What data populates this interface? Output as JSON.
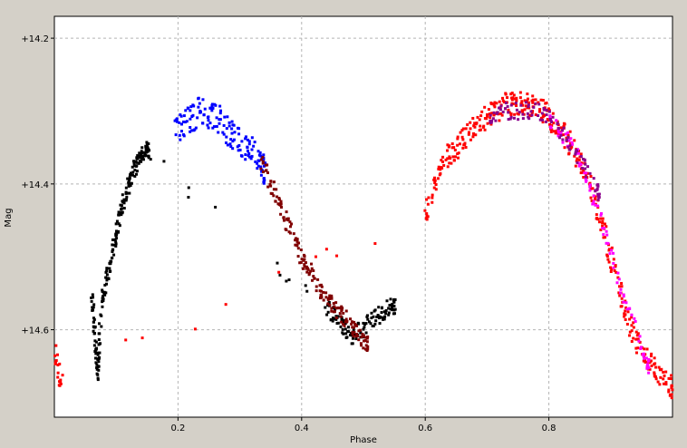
{
  "chart_data": {
    "type": "scatter",
    "xlabel": "Phase",
    "ylabel": "Mag",
    "xlim": [
      0.0,
      1.0
    ],
    "ylim": [
      14.17,
      14.72
    ],
    "y_inverted": true,
    "grid": true,
    "x_ticks": [
      {
        "value": 0.2,
        "label": "0.2"
      },
      {
        "value": 0.4,
        "label": "0.4"
      },
      {
        "value": 0.6,
        "label": "0.6"
      },
      {
        "value": 0.8,
        "label": "0.8"
      }
    ],
    "y_ticks": [
      {
        "value": 14.2,
        "label": "+14.2"
      },
      {
        "value": 14.4,
        "label": "+14.4"
      },
      {
        "value": 14.6,
        "label": "+14.6"
      }
    ],
    "colors": {
      "plot_background": "#ffffff",
      "window_background": "#d4d0c8",
      "grid": "#b4b4b4"
    },
    "series": [
      {
        "color": "#000000",
        "x": [
          0.06,
          0.063,
          0.066,
          0.068,
          0.07,
          0.073,
          0.076,
          0.08,
          0.085,
          0.09,
          0.095,
          0.1,
          0.105,
          0.11,
          0.115,
          0.12,
          0.125,
          0.13,
          0.135,
          0.14,
          0.145,
          0.15,
          0.155,
          0.44,
          0.45,
          0.46,
          0.47,
          0.48,
          0.49,
          0.5,
          0.51,
          0.52,
          0.53,
          0.54,
          0.55
        ],
        "y": [
          14.54,
          14.58,
          14.61,
          14.64,
          14.66,
          14.62,
          14.57,
          14.55,
          14.53,
          14.51,
          14.49,
          14.47,
          14.45,
          14.43,
          14.42,
          14.4,
          14.39,
          14.38,
          14.37,
          14.36,
          14.35,
          14.35,
          14.36,
          14.57,
          14.58,
          14.59,
          14.6,
          14.61,
          14.6,
          14.6,
          14.59,
          14.58,
          14.58,
          14.57,
          14.57
        ],
        "spread": 0.012
      },
      {
        "color": "#0000ff",
        "x": [
          0.195,
          0.205,
          0.215,
          0.225,
          0.235,
          0.245,
          0.255,
          0.265,
          0.275,
          0.285,
          0.295,
          0.305,
          0.315,
          0.325,
          0.335,
          0.34
        ],
        "y": [
          14.33,
          14.32,
          14.31,
          14.31,
          14.3,
          14.3,
          14.31,
          14.31,
          14.32,
          14.33,
          14.34,
          14.35,
          14.35,
          14.36,
          14.37,
          14.38
        ],
        "spread": 0.02
      },
      {
        "color": "#800000",
        "x": [
          0.335,
          0.345,
          0.355,
          0.365,
          0.375,
          0.385,
          0.395,
          0.405,
          0.415,
          0.425,
          0.435,
          0.445,
          0.455,
          0.465,
          0.475,
          0.485,
          0.495,
          0.505
        ],
        "y": [
          14.37,
          14.39,
          14.41,
          14.43,
          14.45,
          14.47,
          14.49,
          14.51,
          14.52,
          14.54,
          14.55,
          14.56,
          14.57,
          14.58,
          14.59,
          14.6,
          14.61,
          14.62
        ],
        "spread": 0.012
      },
      {
        "color": "#ff0000",
        "x": [
          0.0,
          0.005,
          0.01,
          0.6,
          0.61,
          0.62,
          0.63,
          0.64,
          0.65,
          0.66,
          0.67,
          0.68,
          0.69,
          0.7,
          0.71,
          0.72,
          0.73,
          0.74,
          0.75,
          0.76,
          0.77,
          0.78,
          0.79,
          0.8,
          0.81,
          0.82,
          0.83,
          0.84,
          0.85,
          0.86,
          0.87,
          0.88,
          0.89,
          0.9,
          0.91,
          0.92,
          0.93,
          0.94,
          0.95,
          0.96,
          0.97,
          0.98,
          0.99,
          1.0
        ],
        "y": [
          14.63,
          14.65,
          14.67,
          14.44,
          14.41,
          14.39,
          14.37,
          14.36,
          14.35,
          14.34,
          14.33,
          14.32,
          14.31,
          14.31,
          14.3,
          14.3,
          14.29,
          14.29,
          14.29,
          14.29,
          14.29,
          14.3,
          14.3,
          14.31,
          14.32,
          14.33,
          14.34,
          14.35,
          14.37,
          14.39,
          14.41,
          14.44,
          14.47,
          14.5,
          14.53,
          14.56,
          14.59,
          14.61,
          14.63,
          14.64,
          14.65,
          14.66,
          14.67,
          14.68
        ],
        "spread": 0.016
      },
      {
        "color": "#ff00ff",
        "x": [
          0.8,
          0.82,
          0.84,
          0.86,
          0.88,
          0.9,
          0.92,
          0.94,
          0.96
        ],
        "y": [
          14.31,
          14.33,
          14.35,
          14.39,
          14.44,
          14.49,
          14.55,
          14.6,
          14.65
        ],
        "spread": 0.01
      },
      {
        "color": "#8b008b",
        "x": [
          0.7,
          0.72,
          0.74,
          0.76,
          0.78,
          0.8,
          0.82,
          0.84,
          0.86,
          0.88
        ],
        "y": [
          14.31,
          14.3,
          14.3,
          14.3,
          14.3,
          14.31,
          14.33,
          14.35,
          14.38,
          14.41
        ],
        "spread": 0.012
      }
    ]
  }
}
